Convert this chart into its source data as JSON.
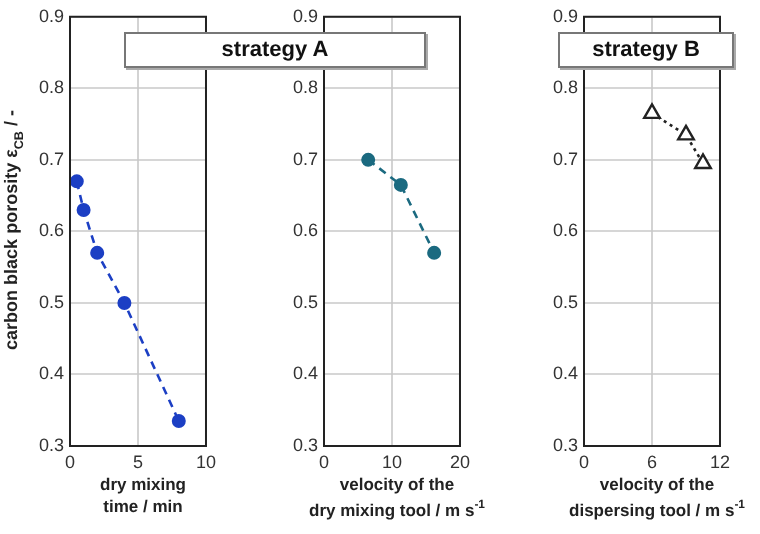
{
  "chart_data": [
    {
      "type": "line",
      "x": [
        0.5,
        1,
        2,
        4,
        8
      ],
      "values": [
        0.67,
        0.63,
        0.57,
        0.5,
        0.335
      ],
      "color": "#1c3fc4",
      "marker": "circle",
      "line_style": "dashed",
      "xlim": [
        0,
        10
      ],
      "ylim": [
        0.3,
        0.9
      ],
      "xticks": [
        0,
        5,
        10
      ],
      "yticks": [
        0.3,
        0.4,
        0.5,
        0.6,
        0.7,
        0.8,
        0.9
      ],
      "grid": true,
      "xlabel": "dry mixing\ntime / min",
      "ylabel": "carbon black porosity ε$_{CB}$ / -",
      "annotations": [
        "strategy A"
      ]
    },
    {
      "type": "line",
      "x": [
        6.5,
        11.3,
        16.2
      ],
      "values": [
        0.7,
        0.665,
        0.57
      ],
      "color": "#1b6a80",
      "marker": "circle",
      "line_style": "dashed",
      "xlim": [
        0,
        20
      ],
      "ylim": [
        0.3,
        0.9
      ],
      "xticks": [
        0,
        10,
        20
      ],
      "yticks": [
        0.3,
        0.4,
        0.5,
        0.6,
        0.7,
        0.8,
        0.9
      ],
      "grid": true,
      "xlabel": "velocity of the\ndry mixing tool / m s$^{-1}$"
    },
    {
      "type": "line",
      "x": [
        6,
        9,
        10.5
      ],
      "values": [
        0.765,
        0.735,
        0.695
      ],
      "color": "#222222",
      "marker": "triangle",
      "line_style": "dotted",
      "xlim": [
        0,
        12
      ],
      "ylim": [
        0.3,
        0.9
      ],
      "xticks": [
        0,
        6,
        12
      ],
      "yticks": [
        0.3,
        0.4,
        0.5,
        0.6,
        0.7,
        0.8,
        0.9
      ],
      "grid": true,
      "xlabel": "velocity of the\ndispersing tool / m s$^{-1}$",
      "annotations": [
        "strategy B"
      ]
    }
  ]
}
